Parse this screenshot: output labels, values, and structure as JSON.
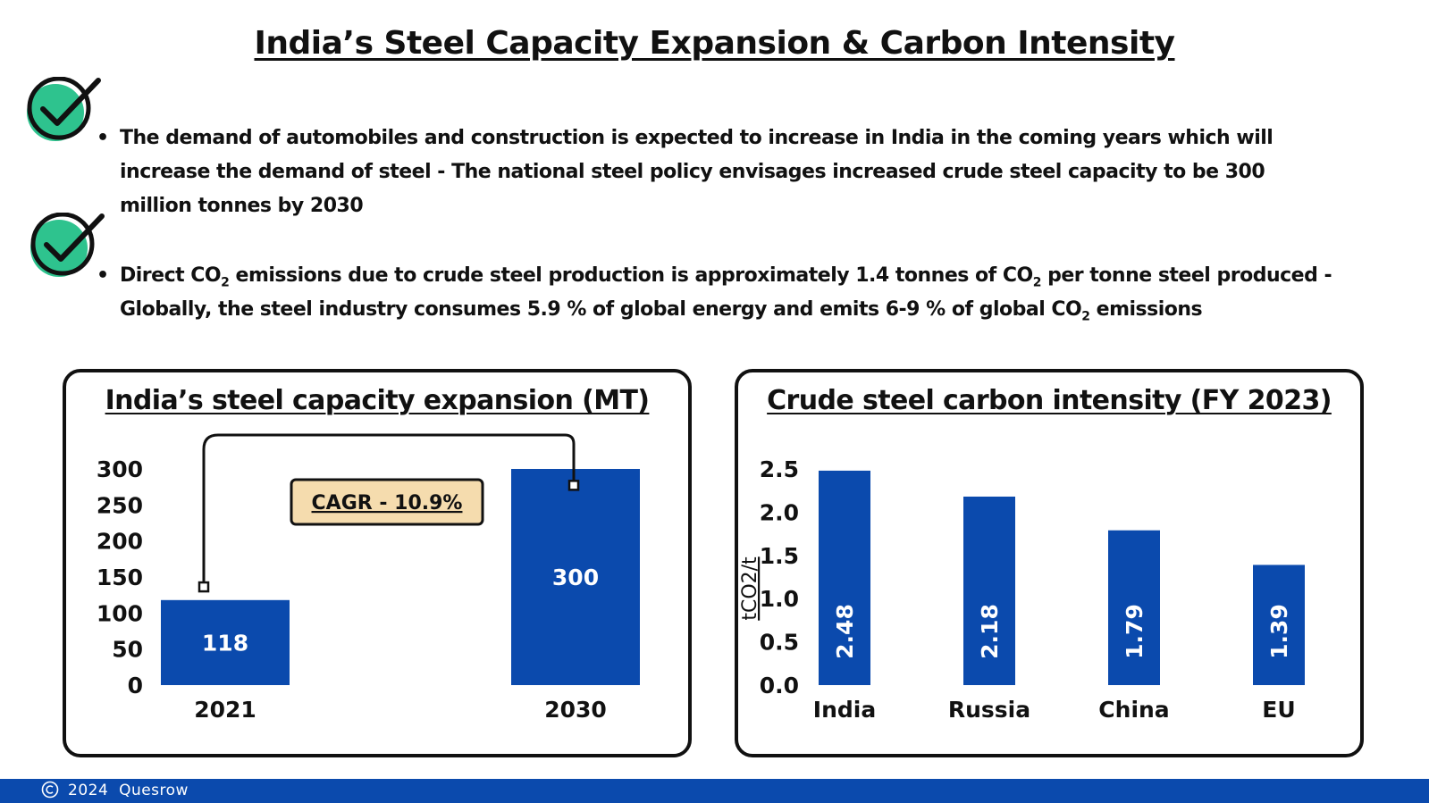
{
  "title": "India’s Steel Capacity Expansion & Carbon Intensity",
  "bullets": [
    {
      "lines": [
        "The demand of automobiles and construction is expected to increase in India in the coming years which will",
        "increase the demand of steel - The national steel policy envisages increased crude steel capacity to be 300",
        "million tonnes by 2030"
      ]
    },
    {
      "line1_a": "Direct CO",
      "line1_sub1": "2",
      "line1_b": " emissions due to crude steel production is approximately 1.4 tonnes of CO",
      "line1_sub2": "2",
      "line1_c": " per tonne steel produced -",
      "line2_a": "Globally, the steel industry consumes 5.9 % of global energy and emits 6-9 % of global CO",
      "line2_sub": "2",
      "line2_b": " emissions"
    }
  ],
  "icons": {
    "check": "check-circle-icon",
    "copyright": "copyright-icon"
  },
  "colors": {
    "bar": "#0b4aad",
    "check_green": "#2ec38e",
    "badge_bg": "#f5dcae",
    "footer": "#0b4aad"
  },
  "chart_data": [
    {
      "type": "bar",
      "title": "India’s steel capacity expansion (MT)",
      "categories": [
        "2021",
        "2030"
      ],
      "values": [
        118,
        300
      ],
      "data_labels": [
        "118",
        "300"
      ],
      "ylim": [
        0,
        300
      ],
      "yticks": [
        "0",
        "50",
        "100",
        "150",
        "200",
        "250",
        "300"
      ],
      "xlabel": "",
      "ylabel": "",
      "annotation": "CAGR - 10.9%"
    },
    {
      "type": "bar",
      "title": "Crude steel carbon intensity (FY 2023)",
      "categories": [
        "India",
        "Russia",
        "China",
        "EU"
      ],
      "values": [
        2.48,
        2.18,
        1.79,
        1.39
      ],
      "data_labels": [
        "2.48",
        "2.18",
        "1.79",
        "1.39"
      ],
      "ylim": [
        0,
        2.5
      ],
      "yticks": [
        "0.0",
        "0.5",
        "1.0",
        "1.5",
        "2.0",
        "2.5"
      ],
      "xlabel": "",
      "ylabel": "tCO2/t"
    }
  ],
  "footer": {
    "text": "2024  Quesrow"
  }
}
